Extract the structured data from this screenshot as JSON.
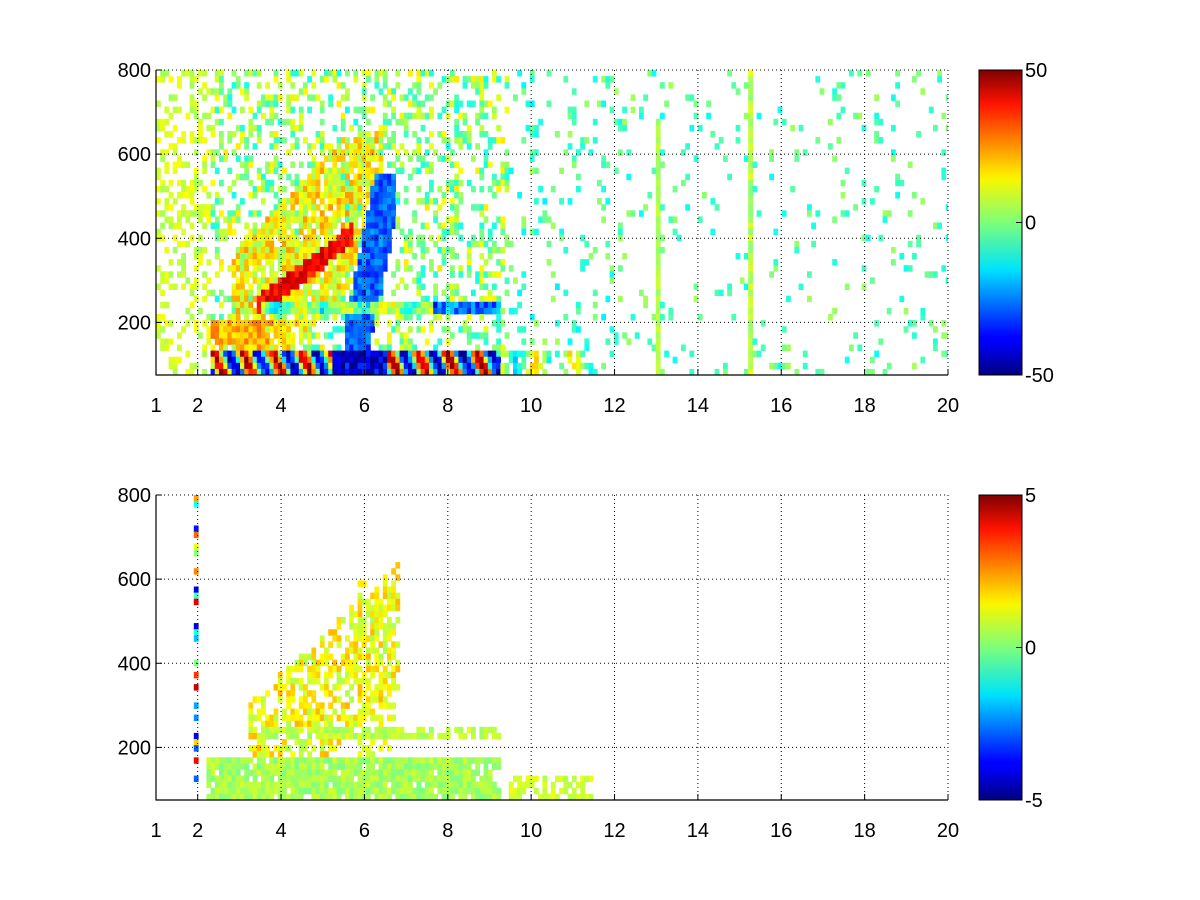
{
  "chart_data": [
    {
      "type": "heatmap",
      "title": "",
      "xlabel": "",
      "ylabel": "",
      "xlim": [
        1,
        20
      ],
      "ylim": [
        75,
        800
      ],
      "xticks": [
        1,
        2,
        4,
        6,
        8,
        10,
        12,
        14,
        16,
        18,
        20
      ],
      "xtick_labels": [
        "1",
        "2",
        "4",
        "6",
        "8",
        "10",
        "12",
        "14",
        "16",
        "18",
        "20"
      ],
      "yticks": [
        200,
        400,
        600,
        800
      ],
      "ytick_labels": [
        "200",
        "400",
        "600",
        "800"
      ],
      "grid": true,
      "colormap": "jet",
      "color_range": [
        -50,
        50
      ],
      "colorbar_ticks": [
        -50,
        0,
        50
      ],
      "colorbar_labels": [
        "-50",
        "0",
        "50"
      ],
      "features": [
        {
          "desc": "strong banded band near bottom",
          "x": [
            2.3,
            9.3
          ],
          "y": [
            80,
            140
          ],
          "value_range": [
            -50,
            50
          ]
        },
        {
          "desc": "second band",
          "x": [
            3.5,
            9.3
          ],
          "y": [
            220,
            250
          ],
          "value_range": [
            -30,
            30
          ]
        },
        {
          "desc": "positive ridge",
          "x": [
            3.5,
            5.6
          ],
          "y": [
            250,
            400
          ],
          "value": 40
        },
        {
          "desc": "negative ridge",
          "x": [
            5.5,
            6.6
          ],
          "y": [
            160,
            560
          ],
          "value": -30
        },
        {
          "desc": "fading tail",
          "x": [
            9.3,
            11.5
          ],
          "y": [
            80,
            130
          ],
          "value_range": [
            -15,
            15
          ]
        },
        {
          "desc": "vertical stripe",
          "x": [
            13.0,
            13.05
          ],
          "y": [
            75,
            690
          ],
          "value": 5
        },
        {
          "desc": "vertical stripe",
          "x": [
            15.2,
            15.3
          ],
          "y": [
            75,
            800
          ],
          "value": 5
        }
      ]
    },
    {
      "type": "heatmap",
      "title": "",
      "xlabel": "",
      "ylabel": "",
      "xlim": [
        1,
        20
      ],
      "ylim": [
        75,
        800
      ],
      "xticks": [
        1,
        2,
        4,
        6,
        8,
        10,
        12,
        14,
        16,
        18,
        20
      ],
      "xtick_labels": [
        "1",
        "2",
        "4",
        "6",
        "8",
        "10",
        "12",
        "14",
        "16",
        "18",
        "20"
      ],
      "yticks": [
        200,
        400,
        600,
        800
      ],
      "ytick_labels": [
        "200",
        "400",
        "600",
        "800"
      ],
      "grid": true,
      "colormap": "jet",
      "color_range": [
        -5,
        5
      ],
      "colorbar_ticks": [
        -5,
        0,
        5
      ],
      "colorbar_labels": [
        "-5",
        "0",
        "5"
      ],
      "features": [
        {
          "desc": "low band",
          "x": [
            2.2,
            9.3
          ],
          "y": [
            80,
            180
          ],
          "value_range": [
            0,
            1
          ]
        },
        {
          "desc": "second band",
          "x": [
            3.5,
            9.3
          ],
          "y": [
            220,
            250
          ],
          "value_range": [
            0,
            1
          ]
        },
        {
          "desc": "yellow ridge",
          "x": [
            3.3,
            6.7
          ],
          "y": [
            250,
            600
          ],
          "value_range": [
            1,
            2
          ]
        },
        {
          "desc": "tail",
          "x": [
            9.5,
            11.5
          ],
          "y": [
            90,
            140
          ],
          "value_range": [
            0,
            1
          ]
        }
      ]
    }
  ]
}
